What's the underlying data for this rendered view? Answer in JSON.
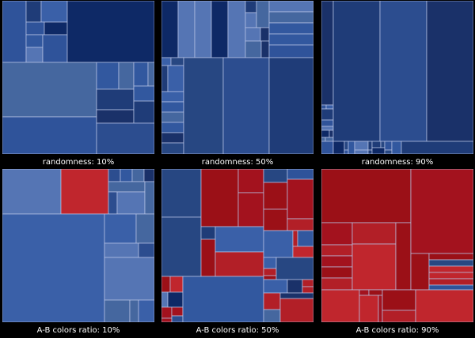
{
  "colors": {
    "background": "#000000",
    "edge": "#b8c4e6",
    "blue_shades": [
      "#2c4d8f",
      "#2f539a",
      "#32589f",
      "#274782",
      "#1f3c78",
      "#3a60a8",
      "#45679f",
      "#1a3169",
      "#0e2966",
      "#5575b4"
    ],
    "red_shades": [
      "#a3121e",
      "#b21f27",
      "#c0262d",
      "#9b1017"
    ]
  },
  "panels": [
    {
      "caption": "randomness: 10%",
      "randomness": 0.1,
      "red_ratio": 0.0,
      "seed": 11
    },
    {
      "caption": "randomness: 50%",
      "randomness": 0.5,
      "red_ratio": 0.0,
      "seed": 23
    },
    {
      "caption": "randomness: 90%",
      "randomness": 0.9,
      "red_ratio": 0.0,
      "seed": 37
    },
    {
      "caption": "A-B colors ratio: 10%",
      "randomness": 0.5,
      "red_ratio": 0.1,
      "seed": 41
    },
    {
      "caption": "A-B colors ratio: 50%",
      "randomness": 0.5,
      "red_ratio": 0.5,
      "seed": 53
    },
    {
      "caption": "A-B colors ratio: 90%",
      "randomness": 0.5,
      "red_ratio": 0.9,
      "seed": 67
    }
  ]
}
